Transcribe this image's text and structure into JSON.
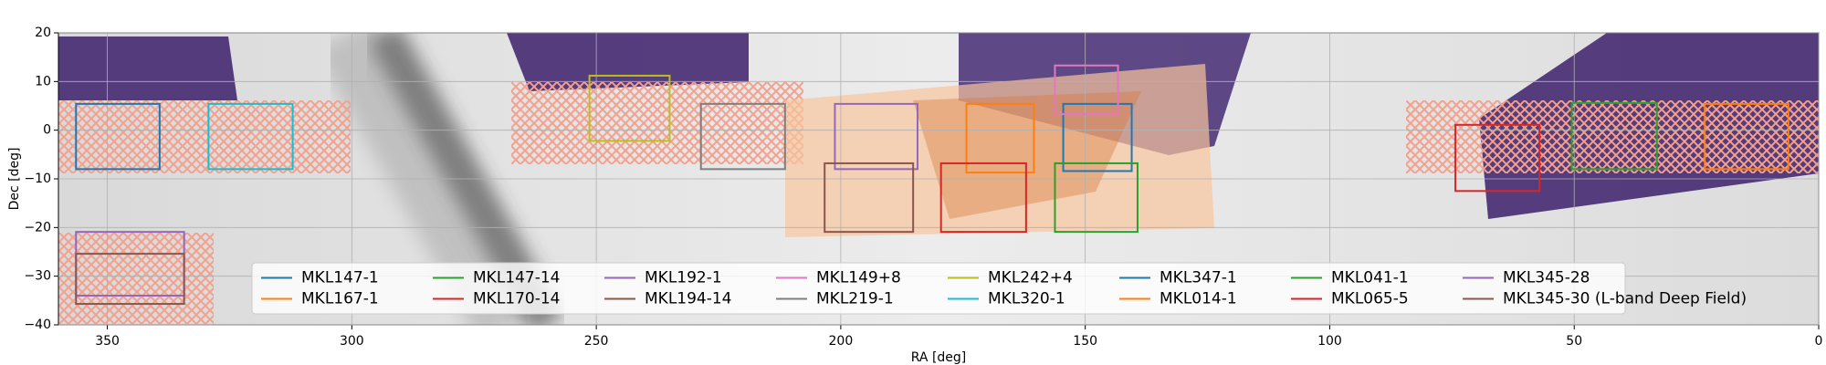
{
  "chart_data": {
    "type": "rectangle",
    "xlabel": "RA [deg]",
    "ylabel": "Dec [deg]",
    "xlim": [
      360,
      0
    ],
    "ylim": [
      -40,
      20
    ],
    "xticks": [
      350,
      300,
      250,
      200,
      150,
      100,
      50,
      0
    ],
    "yticks": [
      20,
      10,
      0,
      {
        "value": -10,
        "label": "−10"
      },
      {
        "value": -20,
        "label": "−20"
      },
      {
        "value": -30,
        "label": "−30"
      },
      {
        "value": -40,
        "label": "−40"
      }
    ],
    "grid": true,
    "legend": "lower center",
    "legend_columns": 8,
    "series": [
      {
        "name": "MKL147-1",
        "color": "#1f77b4",
        "ra": [
          154.5,
          140.5
        ],
        "dec": [
          -8.4,
          5.4
        ]
      },
      {
        "name": "MKL167-1",
        "color": "#ff7f0e",
        "ra": [
          174.3,
          160.5
        ],
        "dec": [
          -8.7,
          5.4
        ]
      },
      {
        "name": "MKL147-14",
        "color": "#2ca02c",
        "ra": [
          156.2,
          139.3
        ],
        "dec": [
          -20.9,
          -6.8
        ]
      },
      {
        "name": "MKL170-14",
        "color": "#d62728",
        "ra": [
          179.5,
          162.1
        ],
        "dec": [
          -20.9,
          -6.8
        ]
      },
      {
        "name": "MKL192-1",
        "color": "#9467bd",
        "ra": [
          201.2,
          184.3
        ],
        "dec": [
          -8,
          5.4
        ]
      },
      {
        "name": "MKL194-14",
        "color": "#8c564b",
        "ra": [
          203.3,
          185.2
        ],
        "dec": [
          -20.9,
          -6.8
        ]
      },
      {
        "name": "MKL149+8",
        "color": "#e377c2",
        "ra": [
          156.2,
          143.3
        ],
        "dec": [
          3.3,
          13.3
        ]
      },
      {
        "name": "MKL219-1",
        "color": "#7f7f7f",
        "ra": [
          228.6,
          211.4
        ],
        "dec": [
          -8,
          5.4
        ]
      },
      {
        "name": "MKL242+4",
        "color": "#bcbd22",
        "ra": [
          251.4,
          235
        ],
        "dec": [
          -2.2,
          11.2
        ]
      },
      {
        "name": "MKL320-1",
        "color": "#17becf",
        "ra": [
          329.3,
          312.1
        ],
        "dec": [
          -8,
          5.4
        ]
      },
      {
        "name": "MKL347-1",
        "color": "#1f77b4",
        "ra": [
          356.4,
          339.3
        ],
        "dec": [
          -8,
          5.4
        ]
      },
      {
        "name": "MKL014-1",
        "color": "#ff7f0e",
        "ra": [
          23.3,
          6.2
        ],
        "dec": [
          -8,
          5.4
        ]
      },
      {
        "name": "MKL041-1",
        "color": "#2ca02c",
        "ra": [
          50.5,
          33.1
        ],
        "dec": [
          -8,
          5.6
        ]
      },
      {
        "name": "MKL065-5",
        "color": "#d62728",
        "ra": [
          74.3,
          57.1
        ],
        "dec": [
          -12.5,
          1.1
        ]
      },
      {
        "name": "MKL345-28",
        "color": "#9467bd",
        "ra": [
          356.4,
          334.3
        ],
        "dec": [
          -34,
          -20.9
        ]
      },
      {
        "name": "MKL345-30 (L-band Deep Field)",
        "color": "#8c564b",
        "ra": [
          356.4,
          334.3
        ],
        "dec": [
          -35.7,
          -25.4
        ]
      }
    ]
  }
}
